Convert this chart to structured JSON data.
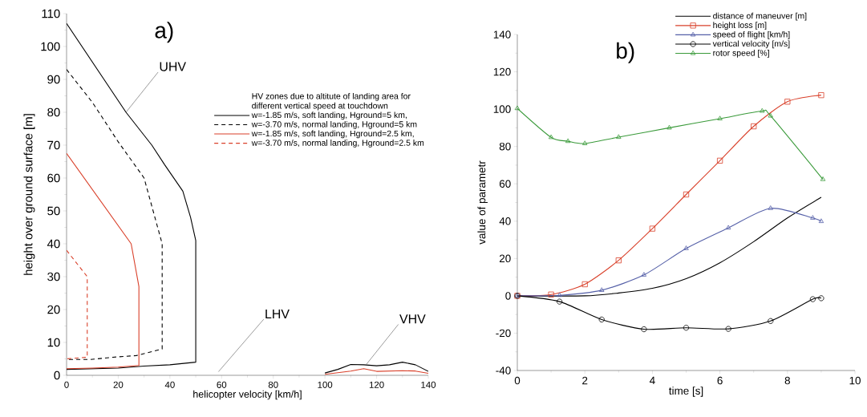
{
  "chart_data": [
    {
      "type": "line",
      "xlabel": "helicopter velocity [km/h]",
      "ylabel": "height over ground surface [m]",
      "legend_title": "HV zones due to altitute of landing area for different vertical speed at touchdown",
      "legend": "top right",
      "xlim": [
        0,
        140
      ],
      "xticks": [
        0,
        20,
        40,
        60,
        80,
        100,
        120,
        140
      ],
      "ylim": [
        0,
        110
      ],
      "yticks": [
        0,
        10,
        20,
        30,
        40,
        50,
        60,
        70,
        80,
        90,
        100,
        110
      ],
      "annotations": [
        "a)",
        {
          "text": "UHV",
          "x": 23,
          "y": 80
        },
        "LHV",
        {
          "text": "VHV",
          "x": 116,
          "y": 3.3
        }
      ],
      "series": [
        {
          "name": "w=-1.85 m/s, soft landing, Hground=5 km,",
          "color": "#000000",
          "line_style": "solid",
          "marker": "none",
          "x": [
            0,
            23,
            33,
            38,
            45,
            48,
            50,
            50,
            40,
            30,
            20,
            10,
            0,
            null,
            100,
            105,
            110,
            115,
            120,
            125,
            130,
            135,
            140
          ],
          "values": [
            107,
            80,
            70,
            64,
            56,
            48,
            41,
            4,
            3.2,
            2.8,
            2.2,
            2.0,
            1.8,
            null,
            0.7,
            1.8,
            3.3,
            3.2,
            2.9,
            3.2,
            4.0,
            3.2,
            1.2
          ]
        },
        {
          "name": "w=-3.70 m/s, normal landing, Hground=5 km",
          "color": "#000000",
          "line_style": "dashed",
          "marker": "none",
          "x": [
            0,
            10,
            20,
            30,
            37,
            37,
            27,
            18,
            9,
            0
          ],
          "values": [
            93,
            83,
            71,
            60,
            40,
            8,
            6,
            5.5,
            4.8,
            4.8
          ]
        },
        {
          "name": "w=-1.85 m/s, soft landing, Hground=2.5 km,",
          "color": "#d9402a",
          "line_style": "solid",
          "marker": "none",
          "x": [
            0,
            25,
            28,
            28,
            20,
            10,
            0,
            null,
            100,
            110,
            115,
            120,
            130,
            135,
            140
          ],
          "values": [
            67.5,
            40,
            27,
            3,
            2.5,
            2.2,
            2,
            null,
            0.3,
            1.3,
            2.0,
            1.2,
            1.4,
            1.3,
            0.6
          ]
        },
        {
          "name": "w=-3.70 m/s, normal landing, Hground=2.5 km",
          "color": "#d9402a",
          "line_style": "dashed",
          "marker": "none",
          "x": [
            0,
            8,
            8,
            0
          ],
          "values": [
            38,
            30,
            5.5,
            5
          ]
        }
      ]
    },
    {
      "type": "line",
      "xlabel": "time [s]",
      "ylabel": "value of parametr",
      "legend": "top right",
      "xlim": [
        0,
        10
      ],
      "xticks": [
        0,
        2,
        4,
        6,
        8,
        10
      ],
      "ylim": [
        -40,
        140
      ],
      "yticks": [
        -40,
        -20,
        0,
        20,
        40,
        60,
        80,
        100,
        120,
        140
      ],
      "annotations": [
        "b)"
      ],
      "series": [
        {
          "name": "distance of maneuver [m]",
          "color": "#000000",
          "line_style": "solid",
          "marker": "none",
          "x": [
            0,
            2,
            3,
            4,
            5,
            6,
            7,
            8,
            9
          ],
          "values": [
            0,
            0,
            1.5,
            4,
            9.2,
            17.7,
            29,
            41.7,
            52.8
          ]
        },
        {
          "name": "height loss [m]",
          "color": "#d9402a",
          "line_style": "solid",
          "marker": "square",
          "x": [
            0,
            1,
            2,
            3,
            4,
            5,
            6,
            7,
            8,
            9
          ],
          "values": [
            0,
            0.7,
            6.2,
            19,
            36,
            54.3,
            72.4,
            90.8,
            104,
            107.5
          ]
        },
        {
          "name": "speed of flight [km/h]",
          "color": "#5560a8",
          "line_style": "solid",
          "marker": "triangle",
          "x": [
            0,
            1.25,
            2.5,
            3.75,
            5,
            6.25,
            7.5,
            8.75,
            9
          ],
          "values": [
            0,
            0.3,
            3,
            11.2,
            25.4,
            36.4,
            46.9,
            41.7,
            39.9
          ]
        },
        {
          "name": "vertical velocity [m/s]",
          "color": "#000000",
          "line_style": "solid",
          "marker": "circle",
          "x": [
            0,
            1.25,
            2.5,
            3.75,
            5,
            6.25,
            7.5,
            8.75,
            9
          ],
          "values": [
            0,
            -3.1,
            -12.7,
            -17.9,
            -17.1,
            -17.7,
            -13.5,
            -1.8,
            -1.3
          ]
        },
        {
          "name": "rotor speed [%]",
          "color": "#3a9a3a",
          "line_style": "solid",
          "marker": "triangle",
          "x": [
            0,
            1,
            1.5,
            2,
            3,
            4.5,
            6,
            7.25,
            7.5,
            9.05
          ],
          "values": [
            100.4,
            84.9,
            82.8,
            81.6,
            85,
            90,
            94.9,
            99,
            96.4,
            62.4
          ]
        }
      ]
    }
  ]
}
